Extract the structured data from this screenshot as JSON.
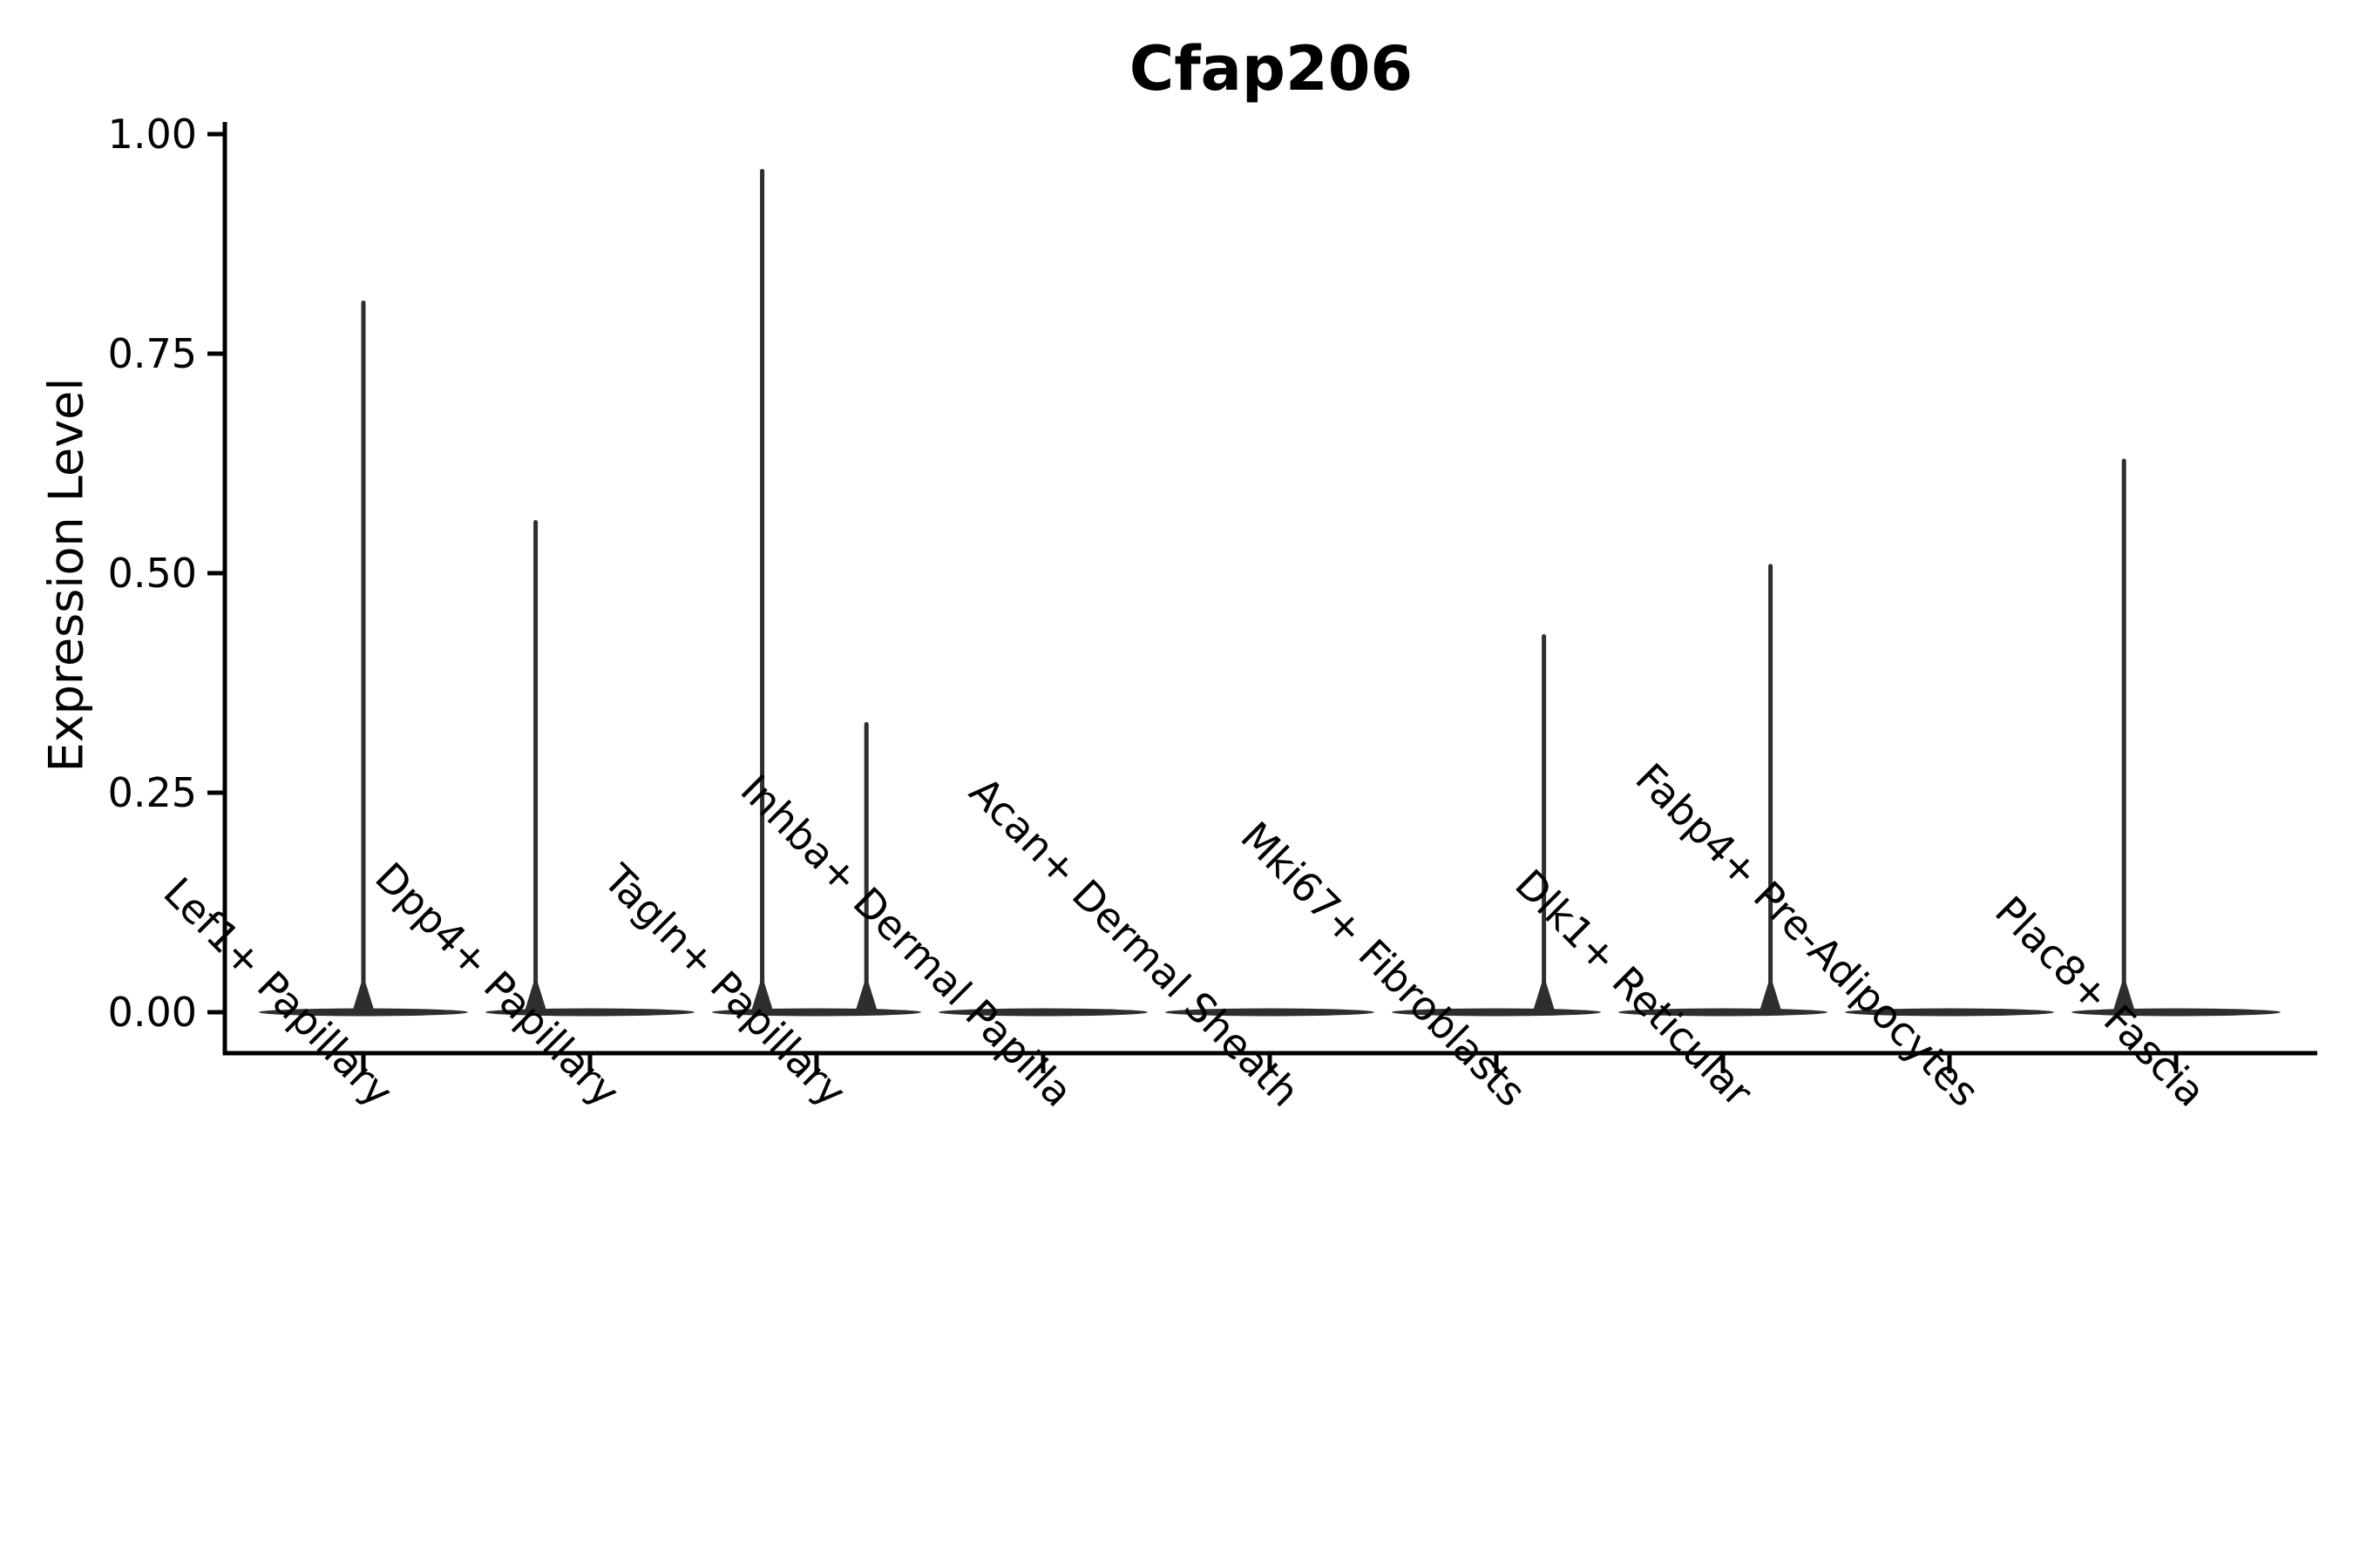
{
  "figure": {
    "title": "Cfap206",
    "background_color": "#ffffff"
  },
  "chart_data": {
    "type": "violin",
    "title": "Cfap206",
    "xlabel": "",
    "ylabel": "Expression Level",
    "ylim": [
      0.0,
      1.0
    ],
    "ytick_labels": [
      "0.00",
      "0.25",
      "0.50",
      "0.75",
      "1.00"
    ],
    "ytick_values": [
      0.0,
      0.25,
      0.5,
      0.75,
      1.0
    ],
    "grid": false,
    "legend": null,
    "categories": [
      "Lef1+ Papillary",
      "Dpp4+ Papillary",
      "Tagln+ Papillary",
      "Inhba+ Dermal Papilla",
      "Acan+ Dermal Sheath",
      "Mki67+ Fibroblasts",
      "Dlk1+ Reticular",
      "Fabp4+ Pre-Adipocytes",
      "Plac8+ Fascia"
    ],
    "series": [
      {
        "category": "Lef1+ Papillary",
        "max_value": 0.81,
        "spikes": [
          {
            "dx": 0.0,
            "value": 0.81
          }
        ]
      },
      {
        "category": "Dpp4+ Papillary",
        "max_value": 0.56,
        "spikes": [
          {
            "dx": -0.24,
            "value": 0.56
          }
        ]
      },
      {
        "category": "Tagln+ Papillary",
        "max_value": 0.96,
        "spikes": [
          {
            "dx": -0.24,
            "value": 0.96
          },
          {
            "dx": 0.22,
            "value": 0.33
          }
        ]
      },
      {
        "category": "Inhba+ Dermal Papilla",
        "max_value": 0.0,
        "spikes": []
      },
      {
        "category": "Acan+ Dermal Sheath",
        "max_value": 0.0,
        "spikes": []
      },
      {
        "category": "Mki67+ Fibroblasts",
        "max_value": 0.43,
        "spikes": [
          {
            "dx": 0.21,
            "value": 0.43
          }
        ]
      },
      {
        "category": "Dlk1+ Reticular",
        "max_value": 0.51,
        "spikes": [
          {
            "dx": 0.21,
            "value": 0.51
          }
        ]
      },
      {
        "category": "Fabp4+ Pre-Adipocytes",
        "max_value": 0.0,
        "spikes": []
      },
      {
        "category": "Plac8+ Fascia",
        "max_value": 0.63,
        "spikes": [
          {
            "dx": -0.23,
            "value": 0.63
          }
        ]
      }
    ],
    "colors": {
      "violin_outline": "#2e2e2e",
      "axis": "#000000",
      "text": "#000000"
    }
  }
}
